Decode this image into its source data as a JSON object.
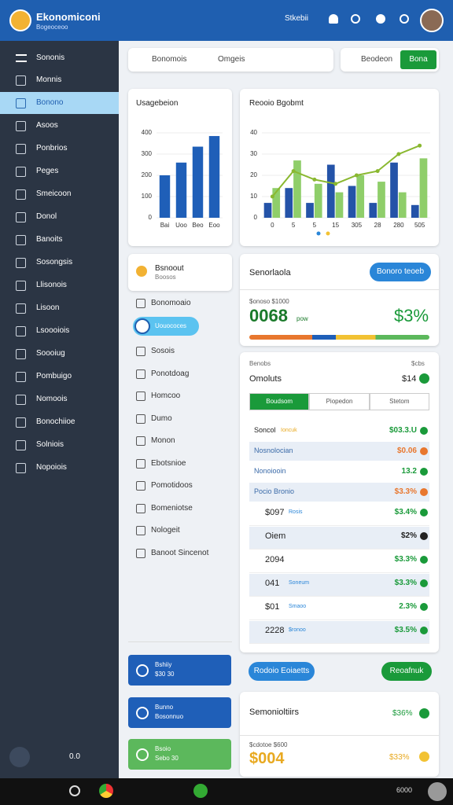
{
  "header": {
    "title": "Ekonomiconi",
    "subtitle": "Bogeoceoo",
    "user": "Stkebii"
  },
  "sidebar": {
    "heading": "Sononis",
    "items": [
      "Monnis",
      "Bonono",
      "Asoos",
      "Ponbrios",
      "Peges",
      "Smeicoon",
      "Donol",
      "Banoits",
      "Sosongsis",
      "Llisonois",
      "Lisoon",
      "Lsoooiois",
      "Soooiug",
      "Pombuigo",
      "Nomoois",
      "Bonochiioe",
      "Solniois",
      "Nopoiois"
    ],
    "footer": "0.0"
  },
  "search": {
    "field1": "Bonomois",
    "field2": "Omgeis",
    "field3": "Beodeon",
    "button": "Bona"
  },
  "left_chart": {
    "type": "bar",
    "title": "Usagebeion",
    "categories": [
      "Bai",
      "Uoo",
      "Beo",
      "Eoo"
    ],
    "values": [
      200,
      260,
      335,
      385
    ],
    "color": "#1f5fb8",
    "ylim": [
      0,
      400
    ],
    "yticks": [
      0,
      100,
      200,
      300,
      400
    ]
  },
  "right_chart": {
    "type": "bar",
    "title": "Reooio Bgobmt",
    "categories": [
      "0",
      "5",
      "5",
      "15",
      "305",
      "28",
      "280",
      "505"
    ],
    "series": [
      {
        "color": "#2453a8",
        "values": [
          7,
          14,
          7,
          25,
          15,
          7,
          26,
          6
        ]
      },
      {
        "color": "#8fce6a",
        "values": [
          14,
          27,
          16,
          12,
          20,
          17,
          12,
          28
        ]
      }
    ],
    "line": {
      "color": "#8ab830",
      "values": [
        10,
        22,
        18,
        16,
        20,
        22,
        30,
        34
      ]
    },
    "ylim": [
      0,
      40
    ],
    "yticks": [
      0,
      10,
      20,
      30,
      40
    ]
  },
  "profile_card": {
    "title": "Bsnoout",
    "subtitle": "Boosos"
  },
  "menu": {
    "items": [
      "Bonomoaio",
      "Uouococes",
      "Sosois",
      "Ponotdoag",
      "Homcoo",
      "Dumo",
      "Monon",
      "Ebotsnioe",
      "Pomotidoos",
      "Bomeniotse",
      "Nologeit",
      "Banoot Sincenot"
    ]
  },
  "action_buttons": [
    {
      "title": "Bshiiy",
      "value": "$30 30",
      "color": "#1f5fb8"
    },
    {
      "title": "Bunno",
      "value": "Bosonnuo",
      "color": "#1f5fb8"
    },
    {
      "title": "Bsoio",
      "value": "Sebo 30",
      "color": "#5cb85c"
    }
  ],
  "summary": {
    "title": "Senorlaola",
    "button": "Bonoro teoeb",
    "label": "$onoso $1000",
    "value": "0068",
    "unit": "pow",
    "change": "$3%"
  },
  "orders": {
    "kicker": "Benobs",
    "kicker_value": "$cbs",
    "title": "Omoluts",
    "title_value": "$14",
    "tabs": [
      "Boudsom",
      "Piopedon",
      "Stetom"
    ],
    "rows": [
      {
        "label": "Soncol",
        "tag": "Ioncuk",
        "value": "$03.3.U",
        "color": "#1a9a3a"
      },
      {
        "label": "Nosnolocian",
        "value": "$0.06",
        "color": "#e8772e"
      },
      {
        "label": "Nonoiooin",
        "value": "13.2",
        "color": "#1a9a3a"
      },
      {
        "label": "Pocio Bronio",
        "value": "$3.3%",
        "color": "#e8772e"
      },
      {
        "label": "$097",
        "tag": "Rosis",
        "value": "$3.4%",
        "color": "#1a9a3a"
      },
      {
        "label": "Oiem",
        "value": "$2%",
        "color": "#222"
      },
      {
        "label": "2094",
        "value": "$3.3%",
        "color": "#1a9a3a"
      },
      {
        "label": "041",
        "tag": "Soneum",
        "value": "$3.3%",
        "color": "#1a9a3a"
      },
      {
        "label": "$01",
        "tag": "Smaoo",
        "value": "2.3%",
        "color": "#1a9a3a"
      },
      {
        "label": "2228",
        "tag": "$ronoo",
        "value": "$3.5%",
        "color": "#1a9a3a"
      }
    ]
  },
  "buttons": [
    "Rodoio Eoiaetts",
    "Reoafnuk"
  ],
  "bottom_card": {
    "title": "Semonioltiirs",
    "title_value": "$36%",
    "label": "$cdotoe $600",
    "value": "$004",
    "change": "$33%"
  },
  "taskbar": {
    "clock": "6000"
  }
}
